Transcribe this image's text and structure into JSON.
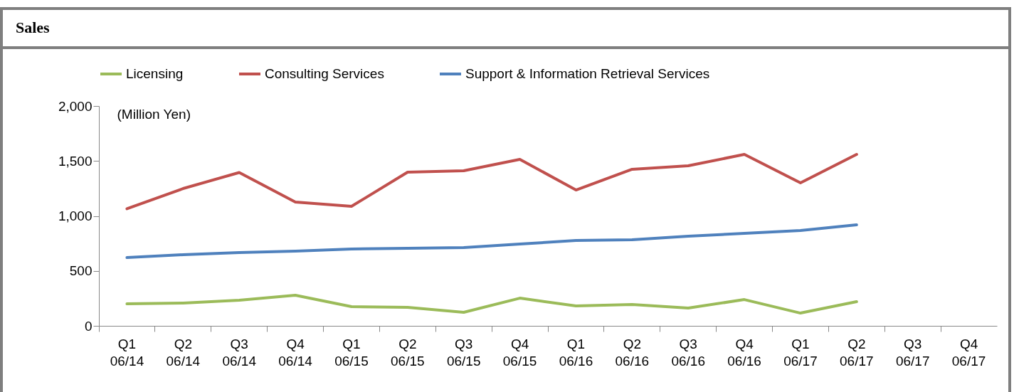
{
  "chart_data": {
    "type": "line",
    "title": "Sales",
    "ylabel": "(Million Yen)",
    "categories": [
      "Q1\n06/14",
      "Q2\n06/14",
      "Q3\n06/14",
      "Q4\n06/14",
      "Q1\n06/15",
      "Q2\n06/15",
      "Q3\n06/15",
      "Q4\n06/15",
      "Q1\n06/16",
      "Q2\n06/16",
      "Q3\n06/16",
      "Q4\n06/16",
      "Q1\n06/17",
      "Q2\n06/17",
      "Q3\n06/17",
      "Q4\n06/17"
    ],
    "series": [
      {
        "name": "Licensing",
        "color": "#9bbb59",
        "values": [
          200,
          207,
          233,
          278,
          175,
          168,
          123,
          252,
          181,
          194,
          162,
          239,
          116,
          220,
          null,
          null
        ]
      },
      {
        "name": "Consulting Services",
        "color": "#c0504d",
        "values": [
          1065,
          1249,
          1395,
          1126,
          1087,
          1398,
          1411,
          1515,
          1236,
          1424,
          1456,
          1560,
          1301,
          1560,
          null,
          null
        ]
      },
      {
        "name": "Support & Information Retrieval Services",
        "color": "#4f81bd",
        "values": [
          621,
          647,
          667,
          680,
          699,
          705,
          712,
          744,
          777,
          783,
          816,
          841,
          867,
          919,
          null,
          null
        ]
      }
    ],
    "ylim": [
      0,
      2000
    ],
    "yticks": [
      0,
      500,
      {
        "value": 1000,
        "label": "1,000"
      },
      {
        "value": 1500,
        "label": "1,500"
      },
      {
        "value": 2000,
        "label": "2,000"
      }
    ],
    "grid": false,
    "legend": "top",
    "marker": "none",
    "line_style": "solid"
  }
}
